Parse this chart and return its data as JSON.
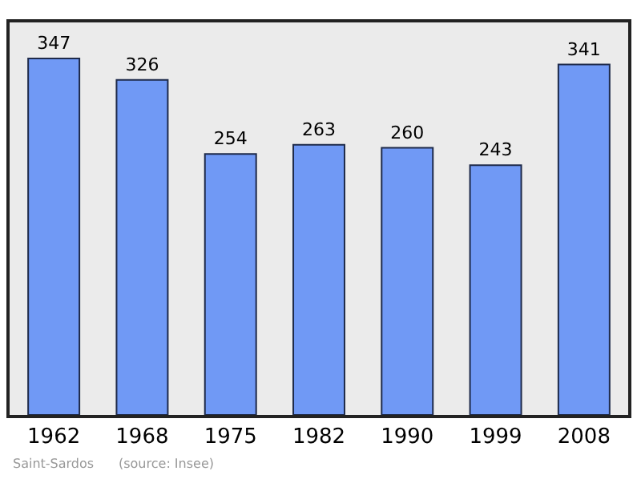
{
  "chart_data": {
    "type": "bar",
    "categories": [
      "1962",
      "1968",
      "1975",
      "1982",
      "1990",
      "1999",
      "2008"
    ],
    "values": [
      347,
      326,
      254,
      263,
      260,
      243,
      341
    ],
    "color": "#7099f5",
    "ylim": [
      0,
      382
    ],
    "data_labels": true,
    "grid": false,
    "legend": false,
    "annotations": [
      "Saint-Sardos",
      "(source: Insee)"
    ]
  }
}
